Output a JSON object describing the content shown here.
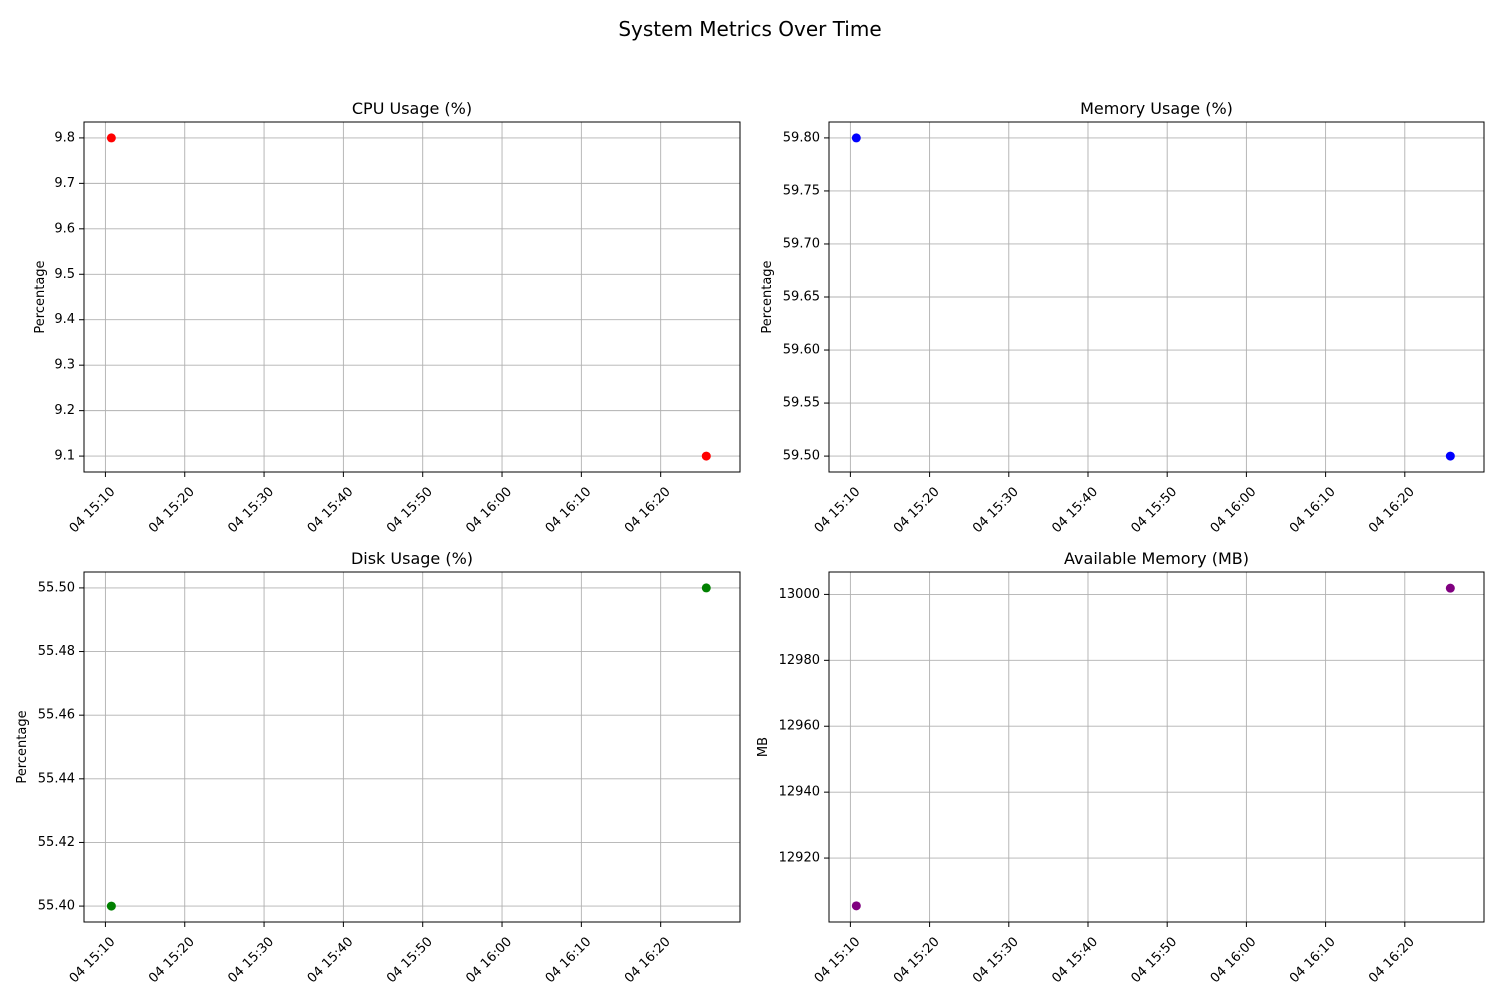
{
  "figure_title": "System Metrics Over Time",
  "colors": {
    "grid": "#b0b0b0",
    "axis": "#000000"
  },
  "chart_data": [
    {
      "type": "scatter",
      "title": "CPU Usage (%)",
      "xlabel": "",
      "ylabel": "Percentage",
      "color": "#ff0000",
      "x_ticks": [
        "04 15:10",
        "04 15:20",
        "04 15:30",
        "04 15:40",
        "04 15:50",
        "04 16:00",
        "04 16:10",
        "04 16:20"
      ],
      "x_tick_minutes": [
        910,
        920,
        930,
        940,
        950,
        960,
        970,
        980
      ],
      "xlim_minutes": [
        907.3,
        990.0
      ],
      "y_ticks": [
        "9.1",
        "9.2",
        "9.3",
        "9.4",
        "9.5",
        "9.6",
        "9.7",
        "9.8"
      ],
      "y_tick_values": [
        9.1,
        9.2,
        9.3,
        9.4,
        9.5,
        9.6,
        9.7,
        9.8
      ],
      "ylim": [
        9.065,
        9.835
      ],
      "grid": true,
      "points": [
        {
          "x_minutes": 910.75,
          "y": 9.8
        },
        {
          "x_minutes": 985.75,
          "y": 9.1
        }
      ]
    },
    {
      "type": "scatter",
      "title": "Memory Usage (%)",
      "xlabel": "",
      "ylabel": "Percentage",
      "color": "#0000ff",
      "x_ticks": [
        "04 15:10",
        "04 15:20",
        "04 15:30",
        "04 15:40",
        "04 15:50",
        "04 16:00",
        "04 16:10",
        "04 16:20"
      ],
      "x_tick_minutes": [
        910,
        920,
        930,
        940,
        950,
        960,
        970,
        980
      ],
      "xlim_minutes": [
        907.3,
        990.0
      ],
      "y_ticks": [
        "59.50",
        "59.55",
        "59.60",
        "59.65",
        "59.70",
        "59.75",
        "59.80"
      ],
      "y_tick_values": [
        59.5,
        59.55,
        59.6,
        59.65,
        59.7,
        59.75,
        59.8
      ],
      "ylim": [
        59.485,
        59.815
      ],
      "grid": true,
      "points": [
        {
          "x_minutes": 910.75,
          "y": 59.8
        },
        {
          "x_minutes": 985.75,
          "y": 59.5
        }
      ]
    },
    {
      "type": "scatter",
      "title": "Disk Usage (%)",
      "xlabel": "",
      "ylabel": "Percentage",
      "color": "#008000",
      "x_ticks": [
        "04 15:10",
        "04 15:20",
        "04 15:30",
        "04 15:40",
        "04 15:50",
        "04 16:00",
        "04 16:10",
        "04 16:20"
      ],
      "x_tick_minutes": [
        910,
        920,
        930,
        940,
        950,
        960,
        970,
        980
      ],
      "xlim_minutes": [
        907.3,
        990.0
      ],
      "y_ticks": [
        "55.40",
        "55.42",
        "55.44",
        "55.46",
        "55.48",
        "55.50"
      ],
      "y_tick_values": [
        55.4,
        55.42,
        55.44,
        55.46,
        55.48,
        55.5
      ],
      "ylim": [
        55.395,
        55.505
      ],
      "grid": true,
      "points": [
        {
          "x_minutes": 910.75,
          "y": 55.4
        },
        {
          "x_minutes": 985.75,
          "y": 55.5
        }
      ]
    },
    {
      "type": "scatter",
      "title": "Available Memory (MB)",
      "xlabel": "",
      "ylabel": "MB",
      "color": "#800080",
      "x_ticks": [
        "04 15:10",
        "04 15:20",
        "04 15:30",
        "04 15:40",
        "04 15:50",
        "04 16:00",
        "04 16:10",
        "04 16:20"
      ],
      "x_tick_minutes": [
        910,
        920,
        930,
        940,
        950,
        960,
        970,
        980
      ],
      "xlim_minutes": [
        907.3,
        990.0
      ],
      "y_ticks": [
        "12920",
        "12940",
        "12960",
        "12980",
        "13000"
      ],
      "y_tick_values": [
        12920,
        12940,
        12960,
        12980,
        13000
      ],
      "ylim": [
        12900.6,
        13006.8
      ],
      "grid": true,
      "points": [
        {
          "x_minutes": 910.75,
          "y": 12905.5
        },
        {
          "x_minutes": 985.75,
          "y": 13001.9
        }
      ]
    }
  ]
}
